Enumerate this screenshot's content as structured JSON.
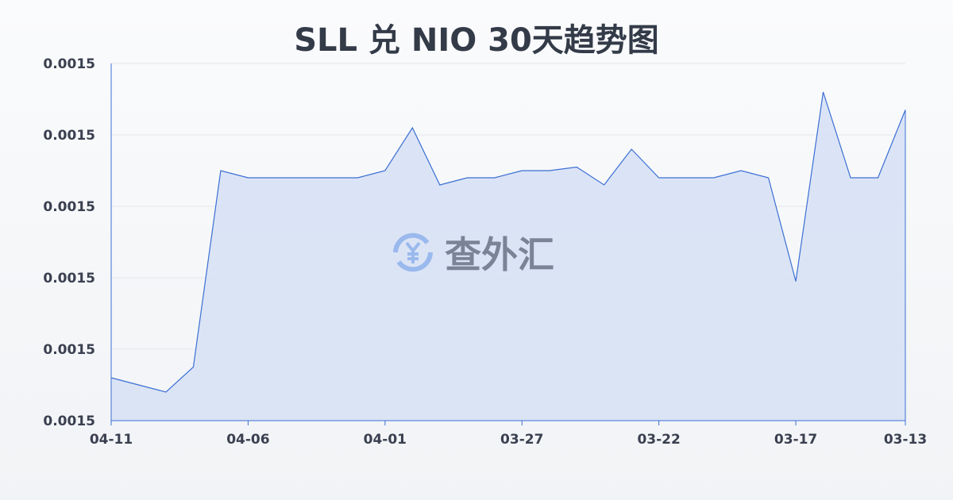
{
  "chart_data": {
    "type": "area",
    "title": "SLL 兑 NIO 30天趋势图",
    "xlabel": "",
    "ylabel": "",
    "x": [
      "04-11",
      "",
      "",
      "",
      "",
      "04-06",
      "",
      "",
      "",
      "",
      "04-01",
      "",
      "",
      "",
      "",
      "03-27",
      "",
      "",
      "",
      "",
      "03-22",
      "",
      "",
      "",
      "",
      "03-17",
      "",
      "",
      "",
      "03-13"
    ],
    "x_tick_labels": [
      "04-11",
      "04-06",
      "04-01",
      "03-27",
      "03-22",
      "03-17",
      "03-13"
    ],
    "y_tick_labels": [
      "0.0015",
      "0.0015",
      "0.0015",
      "0.0015",
      "0.0015",
      "0.0015"
    ],
    "ylim": [
      0.001496,
      0.001506
    ],
    "values": [
      0.0014972,
      0.001497,
      0.0014968,
      0.0014975,
      0.001503,
      0.0015028,
      0.0015028,
      0.0015028,
      0.0015028,
      0.0015028,
      0.001503,
      0.0015042,
      0.0015026,
      0.0015028,
      0.0015028,
      0.001503,
      0.001503,
      0.0015031,
      0.0015026,
      0.0015036,
      0.0015028,
      0.0015028,
      0.0015028,
      0.001503,
      0.0015028,
      0.0014999,
      0.0015052,
      0.0015028,
      0.0015028,
      0.0015047
    ],
    "grid": true,
    "line_color": "#3b6fd4",
    "fill_color": "#d6e0f5"
  },
  "watermark": {
    "text": "查外汇",
    "icon": "yen-exchange-icon"
  }
}
